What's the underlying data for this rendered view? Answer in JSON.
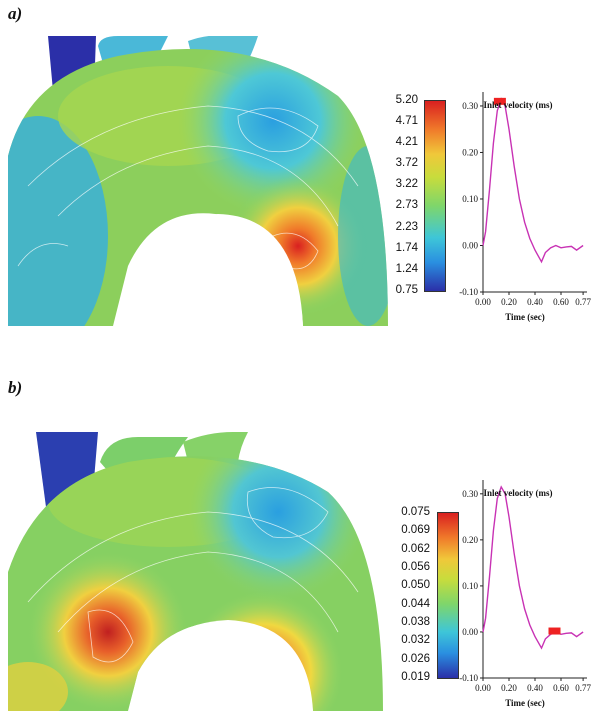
{
  "panels": [
    {
      "label": "a)",
      "colorbar": {
        "ticks": [
          "5.20",
          "4.71",
          "4.21",
          "3.72",
          "3.22",
          "2.73",
          "2.23",
          "1.74",
          "1.24",
          "0.75"
        ]
      },
      "chart_data": {
        "type": "line",
        "title": "Inlet velocity (ms)",
        "xlabel": "Time (sec)",
        "ylabel": "",
        "x_ticks": [
          "0.00",
          "0.20",
          "0.40",
          "0.60",
          "0.77"
        ],
        "y_ticks": [
          "0.30",
          "0.20",
          "0.10",
          "0.00",
          "-0.10"
        ],
        "xlim": [
          0,
          0.8
        ],
        "ylim": [
          -0.1,
          0.33
        ],
        "series": [
          {
            "x": [
              0.0,
              0.02,
              0.05,
              0.08,
              0.11,
              0.14,
              0.17,
              0.2,
              0.24,
              0.28,
              0.32,
              0.36,
              0.4,
              0.42,
              0.45,
              0.48,
              0.52,
              0.56,
              0.6,
              0.64,
              0.68,
              0.72,
              0.77
            ],
            "y": [
              0.0,
              0.03,
              0.12,
              0.22,
              0.29,
              0.315,
              0.3,
              0.25,
              0.17,
              0.1,
              0.05,
              0.015,
              -0.01,
              -0.02,
              -0.035,
              -0.015,
              -0.005,
              0.0,
              -0.005,
              -0.003,
              -0.002,
              -0.01,
              0.0
            ],
            "color": "#c832b4"
          }
        ],
        "marker_time": 0.13
      }
    },
    {
      "label": "b)",
      "colorbar": {
        "ticks": [
          "0.075",
          "0.069",
          "0.062",
          "0.056",
          "0.050",
          "0.044",
          "0.038",
          "0.032",
          "0.026",
          "0.019"
        ]
      },
      "chart_data": {
        "type": "line",
        "title": "Inlet velocity (ms)",
        "xlabel": "Time (sec)",
        "ylabel": "",
        "x_ticks": [
          "0.00",
          "0.20",
          "0.40",
          "0.60",
          "0.77"
        ],
        "y_ticks": [
          "0.30",
          "0.20",
          "0.10",
          "0.00",
          "-0.10"
        ],
        "xlim": [
          0,
          0.8
        ],
        "ylim": [
          -0.1,
          0.33
        ],
        "series": [
          {
            "x": [
              0.0,
              0.02,
              0.05,
              0.08,
              0.11,
              0.14,
              0.17,
              0.2,
              0.24,
              0.28,
              0.32,
              0.36,
              0.4,
              0.42,
              0.45,
              0.48,
              0.52,
              0.56,
              0.6,
              0.64,
              0.68,
              0.72,
              0.77
            ],
            "y": [
              0.0,
              0.03,
              0.12,
              0.22,
              0.29,
              0.315,
              0.3,
              0.25,
              0.17,
              0.1,
              0.05,
              0.015,
              -0.01,
              -0.02,
              -0.035,
              -0.015,
              -0.005,
              0.0,
              -0.005,
              -0.003,
              -0.002,
              -0.01,
              0.0
            ],
            "color": "#c832b4"
          }
        ],
        "marker_time": 0.55
      }
    }
  ],
  "colors": {
    "colormap": [
      "#2b2fa8",
      "#2a8fe0",
      "#3ec6d8",
      "#7fd66a",
      "#c8dc3c",
      "#f0c83a",
      "#f07a2a",
      "#d92020"
    ],
    "marker": "#ee2222"
  }
}
